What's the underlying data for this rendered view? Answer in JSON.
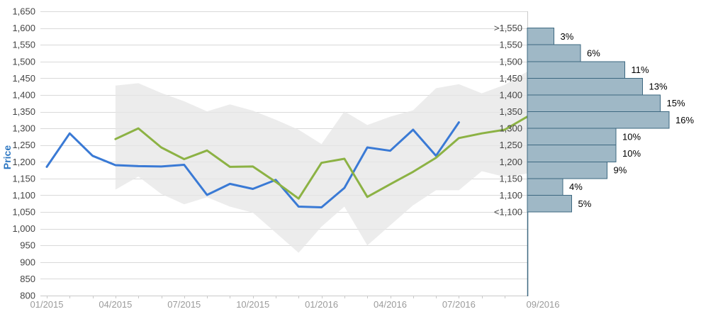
{
  "chart_data": {
    "type": "line",
    "title": "",
    "ylabel": "Price",
    "ylim": [
      800,
      1650
    ],
    "y_tick_step": 50,
    "grid": true,
    "legend": "none",
    "colors": {
      "history_line": "#3a7ad5",
      "forecast_line": "#8cb244",
      "range_band": "#e6e6e6",
      "gridline": "#d9d9d9",
      "axis_line": "#c9c9c9",
      "x_tick_label": "#9b9b9b",
      "y_tick_label": "#444444",
      "y_axis_title": "#2d77c2",
      "histogram_fill": "#9fb8c6",
      "histogram_border": "#3d6880",
      "histogram_value_label": "#000000"
    },
    "y_axis": {
      "tick_labels": [
        "1,650",
        "1,600",
        "1,550",
        "1,500",
        "1,450",
        "1,400",
        "1,350",
        "1,300",
        "1,250",
        "1,200",
        "1,150",
        "1,100",
        "1,050",
        "1,000",
        "950",
        "900",
        "850",
        "800"
      ],
      "tick_prices": [
        1650,
        1600,
        1550,
        1500,
        1450,
        1400,
        1350,
        1300,
        1250,
        1200,
        1150,
        1100,
        1050,
        1000,
        950,
        900,
        850,
        800
      ]
    },
    "x_axis": {
      "unit": "month",
      "first_month": "01/2015",
      "months_shown": 22,
      "minor_tick_every_months": 1,
      "tick_labels": [
        "01/2015",
        "04/2015",
        "07/2015",
        "10/2015",
        "01/2016",
        "04/2016",
        "07/2016"
      ],
      "labeled_month_indices": [
        0,
        3,
        6,
        9,
        12,
        15,
        18
      ],
      "forecast_date_label": "09/2016"
    },
    "series": [
      {
        "name": "historical-price",
        "color": "#3a7ad5",
        "start_month_index": 0,
        "values": [
          1185,
          1285,
          1218,
          1190,
          1187,
          1186,
          1191,
          1101,
          1134,
          1119,
          1146,
          1066,
          1064,
          1122,
          1243,
          1233,
          1296,
          1218,
          1318
        ]
      },
      {
        "name": "forecast-consensus",
        "color": "#8cb244",
        "start_month_index": 3,
        "values": [
          1268,
          1300,
          1243,
          1208,
          1234,
          1185,
          1186,
          1140,
          1090,
          1197,
          1209,
          1095,
          1133,
          1170,
          1212,
          1271,
          1285,
          1296,
          1335
        ]
      }
    ],
    "band": {
      "name": "forecast-range-band",
      "color": "#e6e6e6",
      "opacity": 0.75,
      "start_month_index": 3,
      "top": [
        1428,
        1435,
        1406,
        1381,
        1351,
        1372,
        1353,
        1326,
        1296,
        1253,
        1351,
        1310,
        1335,
        1354,
        1420,
        1432,
        1405,
        1430,
        1470
      ],
      "bottom": [
        1117,
        1156,
        1104,
        1073,
        1094,
        1066,
        1048,
        988,
        928,
        1006,
        1066,
        950,
        1010,
        1070,
        1115,
        1115,
        1172,
        1155,
        1165
      ]
    },
    "histogram": {
      "name": "price-probability-distribution",
      "date_label": "09/2016",
      "bar_fill": "#9fb8c6",
      "bar_border": "#3d6880",
      "edge_labels": [
        ">1,550",
        "1,550",
        "1,500",
        "1,450",
        "1,400",
        "1,350",
        "1,300",
        "1,250",
        "1,200",
        "1,150",
        "1,100",
        "<1,100"
      ],
      "edge_prices": [
        1600,
        1550,
        1500,
        1450,
        1400,
        1350,
        1300,
        1250,
        1200,
        1150,
        1100,
        1050
      ],
      "bin_top_prices": [
        1600,
        1550,
        1500,
        1450,
        1400,
        1350,
        1300,
        1250,
        1200,
        1150,
        1100
      ],
      "bin_percentages": [
        3,
        6,
        11,
        13,
        15,
        16,
        10,
        10,
        9,
        4,
        5
      ],
      "pct_labels": [
        "3%",
        "6%",
        "11%",
        "13%",
        "15%",
        "16%",
        "10%",
        "10%",
        "9%",
        "4%",
        "5%"
      ]
    }
  }
}
